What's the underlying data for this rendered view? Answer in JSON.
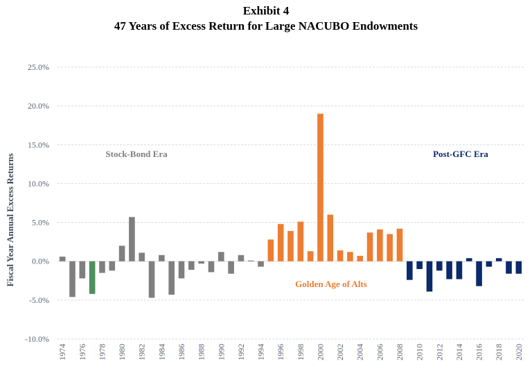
{
  "title": "Exhibit 4",
  "subtitle": "47 Years of Excess Return for Large NACUBO Endowments",
  "colors": {
    "stock_bond": "#7f7f7f",
    "highlight": "#4f8f5f",
    "golden_age": "#ed7d31",
    "post_gfc": "#0b2a6b",
    "grid": "#d9d9d9"
  },
  "chart_data": {
    "type": "bar",
    "title": "47 Years of Excess Return for Large NACUBO Endowments",
    "ylabel": "Fiscal Year Annual Excess Returns",
    "xlabel": "",
    "ylim": [
      -10,
      25
    ],
    "y_ticks": [
      "25.0%",
      "20.0%",
      "15.0%",
      "10.0%",
      "5.0%",
      "0.0%",
      "-5.0%",
      "-10.0%"
    ],
    "x_tick_labels": [
      "1974",
      "1976",
      "1978",
      "1980",
      "1982",
      "1984",
      "1986",
      "1988",
      "1990",
      "1992",
      "1994",
      "1996",
      "1998",
      "2000",
      "2002",
      "2004",
      "2006",
      "2008",
      "2010",
      "2012",
      "2014",
      "2016",
      "2018",
      "2020"
    ],
    "grid": true,
    "categories": [
      1974,
      1975,
      1976,
      1977,
      1978,
      1979,
      1980,
      1981,
      1982,
      1983,
      1984,
      1985,
      1986,
      1987,
      1988,
      1989,
      1990,
      1991,
      1992,
      1993,
      1994,
      1995,
      1996,
      1997,
      1998,
      1999,
      2000,
      2001,
      2002,
      2003,
      2004,
      2005,
      2006,
      2007,
      2008,
      2009,
      2010,
      2011,
      2012,
      2013,
      2014,
      2015,
      2016,
      2017,
      2018,
      2019,
      2020
    ],
    "values": [
      0.6,
      -4.6,
      -2.2,
      -4.2,
      -1.5,
      -1.2,
      2.0,
      5.7,
      1.1,
      -4.7,
      0.8,
      -4.3,
      -2.2,
      -1.1,
      -0.3,
      -1.4,
      1.2,
      -1.6,
      0.8,
      0.1,
      -0.7,
      2.8,
      4.8,
      3.9,
      5.1,
      1.3,
      19.0,
      6.0,
      1.4,
      1.2,
      0.7,
      3.7,
      4.1,
      3.5,
      4.2,
      -2.4,
      -1.0,
      -3.9,
      -1.2,
      -2.3,
      -2.3,
      0.4,
      -3.2,
      -0.7,
      0.4,
      -1.6,
      -1.6
    ],
    "series": [
      {
        "name": "Stock-Bond Era",
        "from": 1974,
        "to": 1994
      },
      {
        "name": "Golden Age of Alts",
        "from": 1995,
        "to": 2008
      },
      {
        "name": "Post-GFC Era",
        "from": 2009,
        "to": 2020
      }
    ],
    "highlighted_year": 1977
  }
}
